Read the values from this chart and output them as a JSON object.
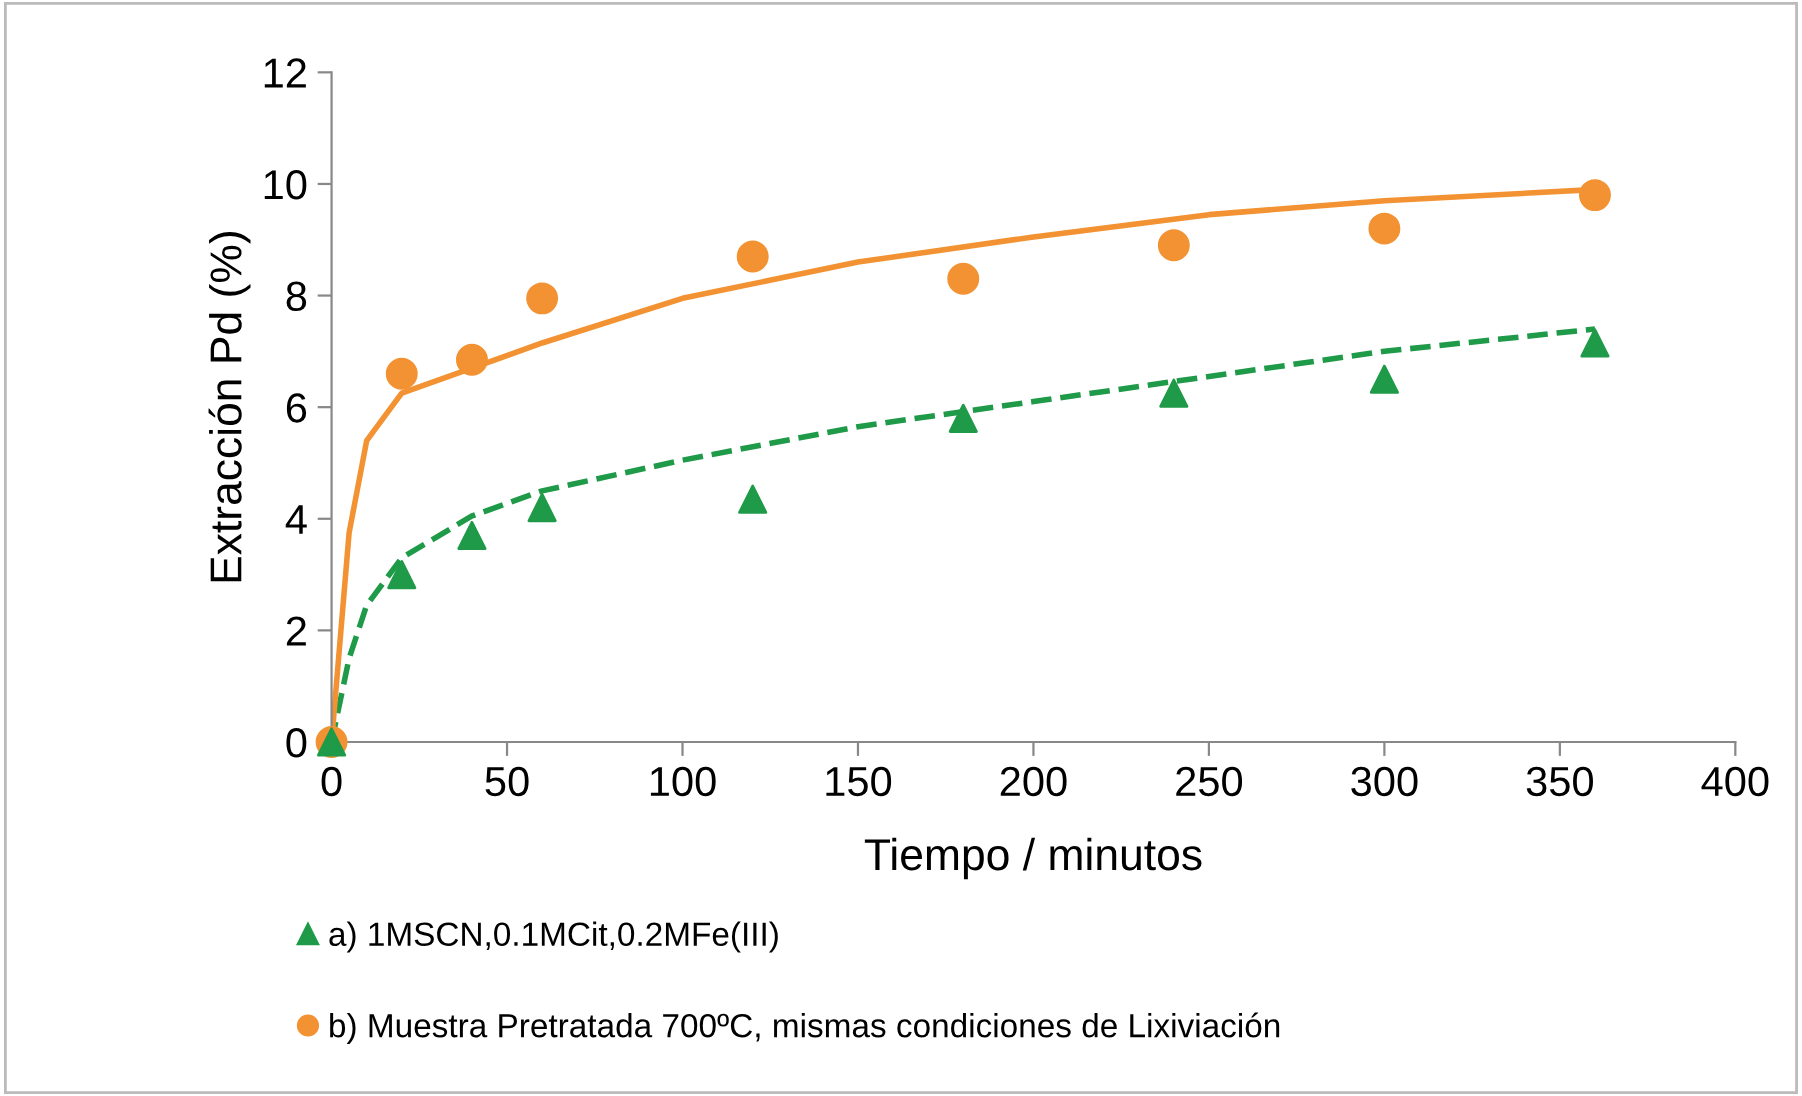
{
  "chart_data": {
    "type": "scatter",
    "xlabel": "Tiempo / minutos",
    "ylabel": "Extracción Pd (%)",
    "xlim": [
      0,
      400
    ],
    "xticks": [
      0,
      50,
      100,
      150,
      200,
      250,
      300,
      350,
      400
    ],
    "ylim": [
      0,
      12
    ],
    "yticks": [
      0,
      2,
      4,
      6,
      8,
      10,
      12
    ],
    "grid": false,
    "legend": "bottom",
    "series": [
      {
        "name": "a) 1MSCN,0.1MCit,0.2MFe(III)",
        "marker": "triangle",
        "color": "#1f9a48",
        "x": [
          0,
          20,
          40,
          60,
          120,
          180,
          240,
          300,
          360
        ],
        "values": [
          0,
          3.0,
          3.7,
          4.2,
          4.35,
          5.8,
          6.25,
          6.5,
          7.15
        ]
      },
      {
        "name": "b) Muestra Pretratada 700ºC, mismas condiciones de Lixiviación",
        "marker": "circle",
        "color": "#f39232",
        "x": [
          0,
          20,
          40,
          60,
          120,
          180,
          240,
          300,
          360
        ],
        "values": [
          0,
          6.6,
          6.85,
          7.95,
          8.7,
          8.3,
          8.9,
          9.2,
          9.8
        ]
      },
      {
        "type": "line",
        "line_style": "dashed",
        "marker": "none",
        "color": "#1f9a48",
        "x": [
          0,
          5,
          10,
          20,
          40,
          60,
          100,
          150,
          200,
          250,
          300,
          360
        ],
        "values": [
          0,
          1.5,
          2.45,
          3.3,
          4.05,
          4.5,
          5.05,
          5.65,
          6.1,
          6.55,
          7.0,
          7.4
        ]
      },
      {
        "type": "line",
        "line_style": "solid",
        "marker": "none",
        "color": "#f39232",
        "x": [
          0,
          5,
          10,
          20,
          40,
          60,
          100,
          150,
          200,
          250,
          300,
          360
        ],
        "values": [
          0,
          3.75,
          5.4,
          6.25,
          6.7,
          7.15,
          7.95,
          8.6,
          9.05,
          9.45,
          9.7,
          9.9
        ]
      }
    ]
  }
}
